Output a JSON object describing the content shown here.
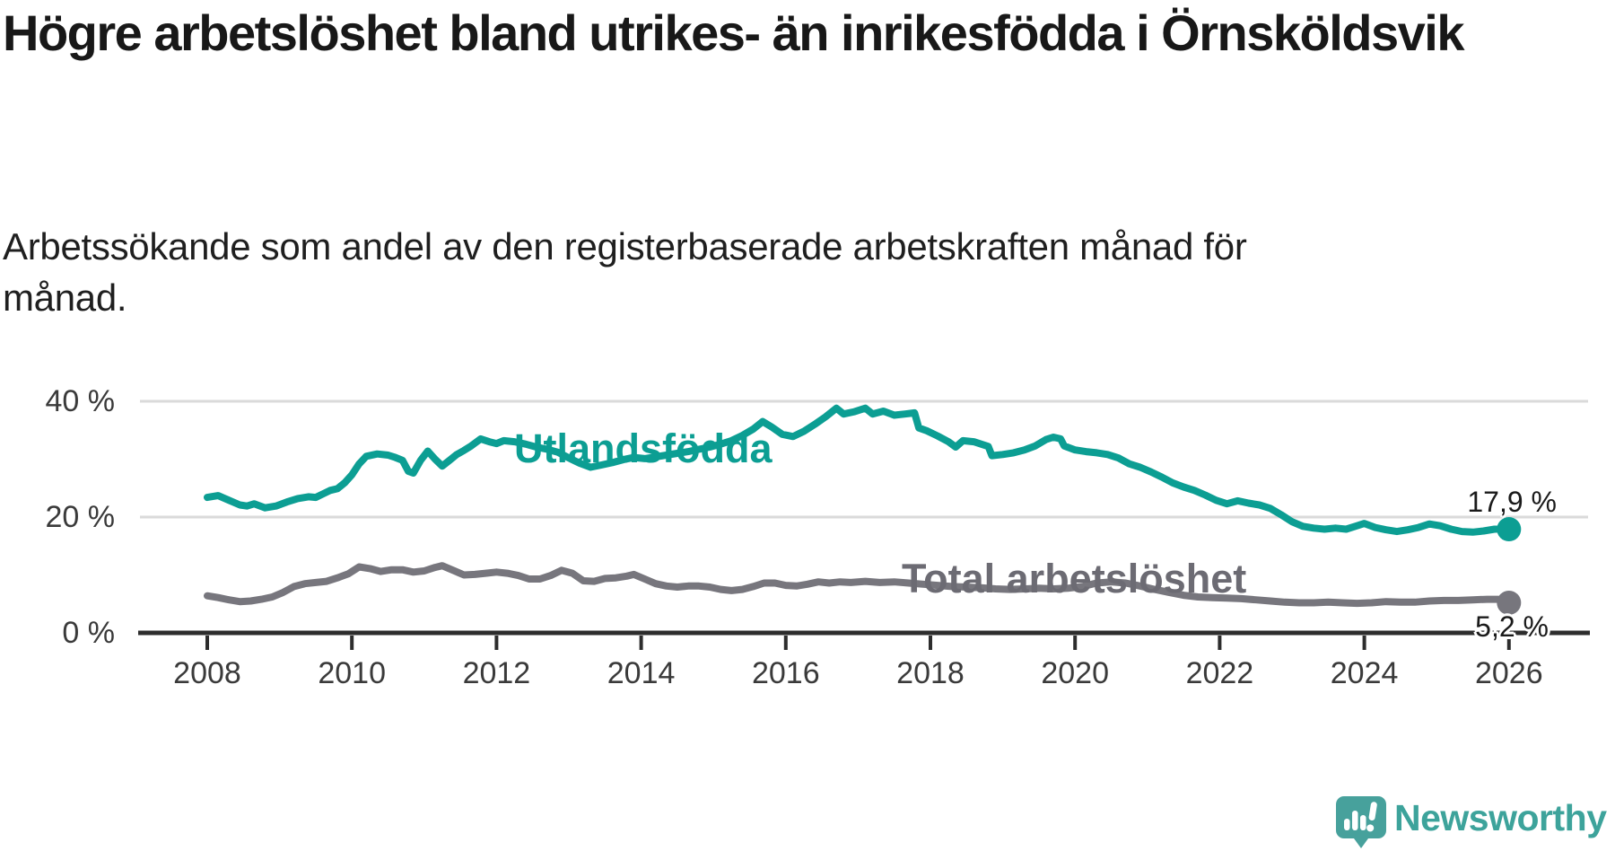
{
  "header": {
    "title": "Högre arbetslöshet bland utrikes- än inrikesfödda i Örnsköldsvik",
    "subtitle_lines": [
      "Arbetssökande som andel av den registerbaserade arbetskraften månad för",
      "månad."
    ]
  },
  "chart_data": {
    "type": "line",
    "title": "Högre arbetslöshet bland utrikes- än inrikesfödda i Örnsköldsvik",
    "subtitle": "Arbetssökande som andel av den registerbaserade arbetskraften månad för månad.",
    "grid": "horizontal-only",
    "legend_position": "inline-labels",
    "x_axis": {
      "range": [
        2007.8,
        2027.0
      ],
      "ticks": [
        2008,
        2010,
        2012,
        2014,
        2016,
        2018,
        2020,
        2022,
        2024,
        2026
      ]
    },
    "y_axis": {
      "unit": "%",
      "range": [
        0,
        43
      ],
      "ticks": [
        {
          "value": 0,
          "label": "0 %"
        },
        {
          "value": 20,
          "label": "20 %"
        },
        {
          "value": 40,
          "label": "40 %"
        }
      ]
    },
    "colors": {
      "utlandsfodda": "#0c9e93",
      "total": "#77767d",
      "gridline": "#dadada",
      "axis": "#2d2d2d"
    },
    "series": [
      {
        "name": "Utlandsfödda",
        "color": "#0c9e93",
        "end_value": 17.9,
        "end_label": "17,9 %",
        "points": [
          [
            2008.0,
            23.4
          ],
          [
            2008.15,
            23.7
          ],
          [
            2008.3,
            22.9
          ],
          [
            2008.45,
            22.1
          ],
          [
            2008.55,
            21.9
          ],
          [
            2008.65,
            22.3
          ],
          [
            2008.8,
            21.6
          ],
          [
            2008.95,
            21.9
          ],
          [
            2009.1,
            22.6
          ],
          [
            2009.25,
            23.2
          ],
          [
            2009.4,
            23.5
          ],
          [
            2009.5,
            23.4
          ],
          [
            2009.6,
            24.0
          ],
          [
            2009.7,
            24.6
          ],
          [
            2009.8,
            24.9
          ],
          [
            2009.9,
            25.9
          ],
          [
            2010.0,
            27.3
          ],
          [
            2010.1,
            29.2
          ],
          [
            2010.2,
            30.5
          ],
          [
            2010.35,
            30.9
          ],
          [
            2010.5,
            30.7
          ],
          [
            2010.6,
            30.3
          ],
          [
            2010.7,
            29.8
          ],
          [
            2010.78,
            27.9
          ],
          [
            2010.85,
            27.6
          ],
          [
            2010.95,
            29.8
          ],
          [
            2011.05,
            31.4
          ],
          [
            2011.15,
            30.0
          ],
          [
            2011.25,
            28.8
          ],
          [
            2011.35,
            29.8
          ],
          [
            2011.45,
            30.8
          ],
          [
            2011.55,
            31.5
          ],
          [
            2011.65,
            32.3
          ],
          [
            2011.78,
            33.5
          ],
          [
            2011.9,
            33.0
          ],
          [
            2012.0,
            32.7
          ],
          [
            2012.1,
            33.2
          ],
          [
            2012.25,
            33.0
          ],
          [
            2012.4,
            32.6
          ],
          [
            2012.55,
            32.1
          ],
          [
            2012.7,
            31.7
          ],
          [
            2012.85,
            31.2
          ],
          [
            2013.0,
            30.2
          ],
          [
            2013.15,
            29.3
          ],
          [
            2013.3,
            28.6
          ],
          [
            2013.45,
            29.0
          ],
          [
            2013.6,
            29.4
          ],
          [
            2013.75,
            29.9
          ],
          [
            2013.9,
            30.3
          ],
          [
            2014.05,
            30.1
          ],
          [
            2014.2,
            30.4
          ],
          [
            2014.35,
            30.7
          ],
          [
            2014.5,
            31.0
          ],
          [
            2014.65,
            31.3
          ],
          [
            2014.8,
            31.7
          ],
          [
            2014.95,
            32.1
          ],
          [
            2015.1,
            32.6
          ],
          [
            2015.25,
            33.2
          ],
          [
            2015.4,
            34.1
          ],
          [
            2015.55,
            35.2
          ],
          [
            2015.68,
            36.5
          ],
          [
            2015.8,
            35.6
          ],
          [
            2015.95,
            34.3
          ],
          [
            2016.1,
            33.9
          ],
          [
            2016.25,
            34.8
          ],
          [
            2016.4,
            36.0
          ],
          [
            2016.55,
            37.3
          ],
          [
            2016.7,
            38.8
          ],
          [
            2016.8,
            37.8
          ],
          [
            2016.95,
            38.2
          ],
          [
            2017.1,
            38.8
          ],
          [
            2017.2,
            37.8
          ],
          [
            2017.35,
            38.3
          ],
          [
            2017.5,
            37.6
          ],
          [
            2017.65,
            37.8
          ],
          [
            2017.78,
            38.0
          ],
          [
            2017.84,
            35.4
          ],
          [
            2017.95,
            34.9
          ],
          [
            2018.1,
            34.0
          ],
          [
            2018.25,
            33.0
          ],
          [
            2018.35,
            32.1
          ],
          [
            2018.45,
            33.2
          ],
          [
            2018.6,
            33.0
          ],
          [
            2018.7,
            32.6
          ],
          [
            2018.8,
            32.2
          ],
          [
            2018.85,
            30.6
          ],
          [
            2019.0,
            30.8
          ],
          [
            2019.15,
            31.1
          ],
          [
            2019.3,
            31.6
          ],
          [
            2019.45,
            32.3
          ],
          [
            2019.6,
            33.4
          ],
          [
            2019.7,
            33.8
          ],
          [
            2019.8,
            33.5
          ],
          [
            2019.85,
            32.3
          ],
          [
            2020.0,
            31.6
          ],
          [
            2020.15,
            31.3
          ],
          [
            2020.3,
            31.1
          ],
          [
            2020.45,
            30.8
          ],
          [
            2020.6,
            30.2
          ],
          [
            2020.75,
            29.2
          ],
          [
            2020.9,
            28.6
          ],
          [
            2021.05,
            27.8
          ],
          [
            2021.2,
            26.9
          ],
          [
            2021.35,
            25.9
          ],
          [
            2021.5,
            25.2
          ],
          [
            2021.65,
            24.6
          ],
          [
            2021.8,
            23.8
          ],
          [
            2021.95,
            22.9
          ],
          [
            2022.1,
            22.3
          ],
          [
            2022.25,
            22.8
          ],
          [
            2022.4,
            22.4
          ],
          [
            2022.55,
            22.1
          ],
          [
            2022.7,
            21.5
          ],
          [
            2022.85,
            20.4
          ],
          [
            2023.0,
            19.2
          ],
          [
            2023.15,
            18.4
          ],
          [
            2023.3,
            18.1
          ],
          [
            2023.45,
            17.9
          ],
          [
            2023.6,
            18.1
          ],
          [
            2023.75,
            17.9
          ],
          [
            2023.9,
            18.5
          ],
          [
            2024.0,
            18.9
          ],
          [
            2024.15,
            18.2
          ],
          [
            2024.3,
            17.8
          ],
          [
            2024.45,
            17.5
          ],
          [
            2024.6,
            17.8
          ],
          [
            2024.75,
            18.2
          ],
          [
            2024.9,
            18.8
          ],
          [
            2025.05,
            18.5
          ],
          [
            2025.2,
            17.9
          ],
          [
            2025.35,
            17.5
          ],
          [
            2025.5,
            17.4
          ],
          [
            2025.65,
            17.6
          ],
          [
            2025.8,
            17.9
          ],
          [
            2026.0,
            17.9
          ]
        ]
      },
      {
        "name": "Total arbetslöshet",
        "color": "#77767d",
        "end_value": 5.2,
        "end_label": "5,2 %",
        "points": [
          [
            2008.0,
            6.4
          ],
          [
            2008.15,
            6.1
          ],
          [
            2008.3,
            5.7
          ],
          [
            2008.45,
            5.4
          ],
          [
            2008.6,
            5.5
          ],
          [
            2008.75,
            5.8
          ],
          [
            2008.9,
            6.2
          ],
          [
            2009.05,
            7.0
          ],
          [
            2009.2,
            8.0
          ],
          [
            2009.35,
            8.5
          ],
          [
            2009.5,
            8.7
          ],
          [
            2009.65,
            8.9
          ],
          [
            2009.8,
            9.5
          ],
          [
            2009.95,
            10.2
          ],
          [
            2010.1,
            11.4
          ],
          [
            2010.25,
            11.1
          ],
          [
            2010.4,
            10.6
          ],
          [
            2010.55,
            10.9
          ],
          [
            2010.7,
            10.9
          ],
          [
            2010.85,
            10.5
          ],
          [
            2011.0,
            10.7
          ],
          [
            2011.15,
            11.3
          ],
          [
            2011.25,
            11.6
          ],
          [
            2011.4,
            10.8
          ],
          [
            2011.55,
            10.0
          ],
          [
            2011.7,
            10.1
          ],
          [
            2011.85,
            10.3
          ],
          [
            2012.0,
            10.5
          ],
          [
            2012.15,
            10.3
          ],
          [
            2012.3,
            9.9
          ],
          [
            2012.45,
            9.3
          ],
          [
            2012.6,
            9.3
          ],
          [
            2012.75,
            9.9
          ],
          [
            2012.9,
            10.8
          ],
          [
            2013.05,
            10.3
          ],
          [
            2013.2,
            9.0
          ],
          [
            2013.35,
            8.9
          ],
          [
            2013.5,
            9.4
          ],
          [
            2013.65,
            9.5
          ],
          [
            2013.8,
            9.8
          ],
          [
            2013.9,
            10.1
          ],
          [
            2014.05,
            9.3
          ],
          [
            2014.2,
            8.5
          ],
          [
            2014.35,
            8.1
          ],
          [
            2014.5,
            7.9
          ],
          [
            2014.65,
            8.1
          ],
          [
            2014.8,
            8.1
          ],
          [
            2014.95,
            7.9
          ],
          [
            2015.1,
            7.5
          ],
          [
            2015.25,
            7.3
          ],
          [
            2015.4,
            7.5
          ],
          [
            2015.55,
            8.0
          ],
          [
            2015.7,
            8.6
          ],
          [
            2015.85,
            8.6
          ],
          [
            2016.0,
            8.2
          ],
          [
            2016.15,
            8.1
          ],
          [
            2016.3,
            8.4
          ],
          [
            2016.45,
            8.8
          ],
          [
            2016.6,
            8.6
          ],
          [
            2016.75,
            8.8
          ],
          [
            2016.9,
            8.7
          ],
          [
            2017.1,
            8.9
          ],
          [
            2017.3,
            8.7
          ],
          [
            2017.5,
            8.8
          ],
          [
            2017.7,
            8.6
          ],
          [
            2017.9,
            8.4
          ],
          [
            2018.1,
            8.2
          ],
          [
            2018.3,
            8.0
          ],
          [
            2018.5,
            7.9
          ],
          [
            2018.7,
            7.8
          ],
          [
            2018.9,
            7.6
          ],
          [
            2019.1,
            7.5
          ],
          [
            2019.3,
            7.6
          ],
          [
            2019.5,
            7.7
          ],
          [
            2019.7,
            7.6
          ],
          [
            2019.9,
            7.7
          ],
          [
            2020.1,
            8.0
          ],
          [
            2020.3,
            8.6
          ],
          [
            2020.5,
            8.8
          ],
          [
            2020.7,
            8.6
          ],
          [
            2020.9,
            8.1
          ],
          [
            2021.1,
            7.5
          ],
          [
            2021.3,
            7.0
          ],
          [
            2021.5,
            6.5
          ],
          [
            2021.7,
            6.2
          ],
          [
            2021.9,
            6.1
          ],
          [
            2022.1,
            6.0
          ],
          [
            2022.3,
            5.9
          ],
          [
            2022.5,
            5.7
          ],
          [
            2022.7,
            5.5
          ],
          [
            2022.9,
            5.3
          ],
          [
            2023.1,
            5.2
          ],
          [
            2023.3,
            5.2
          ],
          [
            2023.5,
            5.3
          ],
          [
            2023.7,
            5.2
          ],
          [
            2023.9,
            5.1
          ],
          [
            2024.1,
            5.2
          ],
          [
            2024.3,
            5.4
          ],
          [
            2024.5,
            5.3
          ],
          [
            2024.7,
            5.3
          ],
          [
            2024.9,
            5.5
          ],
          [
            2025.1,
            5.6
          ],
          [
            2025.3,
            5.6
          ],
          [
            2025.5,
            5.7
          ],
          [
            2025.7,
            5.8
          ],
          [
            2025.85,
            5.8
          ],
          [
            2026.0,
            5.2
          ]
        ]
      }
    ]
  },
  "logo": {
    "text": "Newsworthy",
    "color": "#3da39b",
    "mark_color": "#47a19c"
  }
}
